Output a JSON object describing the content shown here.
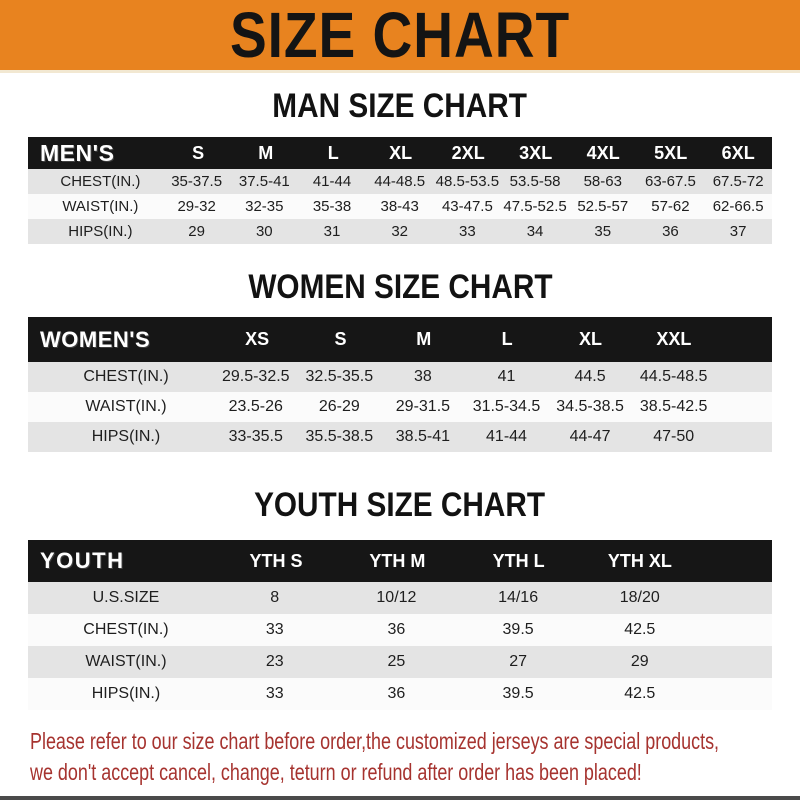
{
  "banner": {
    "title": "SIZE CHART",
    "bg_color": "#E8831F",
    "text_color": "#141414"
  },
  "sections": [
    {
      "heading": "MAN SIZE CHART",
      "header_label": "MEN'S",
      "columns": [
        "S",
        "M",
        "L",
        "XL",
        "2XL",
        "3XL",
        "4XL",
        "5XL",
        "6XL"
      ],
      "rows": [
        {
          "label": "CHEST(IN.)",
          "values": [
            "35-37.5",
            "37.5-41",
            "41-44",
            "44-48.5",
            "48.5-53.5",
            "53.5-58",
            "58-63",
            "63-67.5",
            "67.5-72"
          ]
        },
        {
          "label": "WAIST(IN.)",
          "values": [
            "29-32",
            "32-35",
            "35-38",
            "38-43",
            "43-47.5",
            "47.5-52.5",
            "52.5-57",
            "57-62",
            "62-66.5"
          ]
        },
        {
          "label": "HIPS(IN.)",
          "values": [
            "29",
            "30",
            "31",
            "32",
            "33",
            "34",
            "35",
            "36",
            "37"
          ]
        }
      ]
    },
    {
      "heading": "WOMEN SIZE CHART",
      "header_label": "WOMEN'S",
      "columns": [
        "XS",
        "S",
        "M",
        "L",
        "XL",
        "XXL"
      ],
      "rows": [
        {
          "label": "CHEST(IN.)",
          "values": [
            "29.5-32.5",
            "32.5-35.5",
            "38",
            "41",
            "44.5",
            "44.5-48.5"
          ]
        },
        {
          "label": "WAIST(IN.)",
          "values": [
            "23.5-26",
            "26-29",
            "29-31.5",
            "31.5-34.5",
            "34.5-38.5",
            "38.5-42.5"
          ]
        },
        {
          "label": "HIPS(IN.)",
          "values": [
            "33-35.5",
            "35.5-38.5",
            "38.5-41",
            "41-44",
            "44-47",
            "47-50"
          ]
        }
      ]
    },
    {
      "heading": "YOUTH SIZE CHART",
      "header_label": "YOUTH",
      "columns": [
        "YTH S",
        "YTH M",
        "YTH L",
        "YTH XL"
      ],
      "rows": [
        {
          "label": "U.S.SIZE",
          "values": [
            "8",
            "10/12",
            "14/16",
            "18/20"
          ]
        },
        {
          "label": "CHEST(IN.)",
          "values": [
            "33",
            "36",
            "39.5",
            "42.5"
          ]
        },
        {
          "label": "WAIST(IN.)",
          "values": [
            "23",
            "25",
            "27",
            "29"
          ]
        },
        {
          "label": "HIPS(IN.)",
          "values": [
            "33",
            "36",
            "39.5",
            "42.5"
          ]
        }
      ]
    }
  ],
  "footer": {
    "line1": "Please refer to our size chart before order,the customized jerseys are special products,",
    "line2": "we don't accept cancel, change, teturn or refund after order has been placed!",
    "text_color": "#A6332F"
  },
  "table_style": {
    "header_bg": "#161616",
    "alt_row_bg": "#E4E4E4"
  }
}
